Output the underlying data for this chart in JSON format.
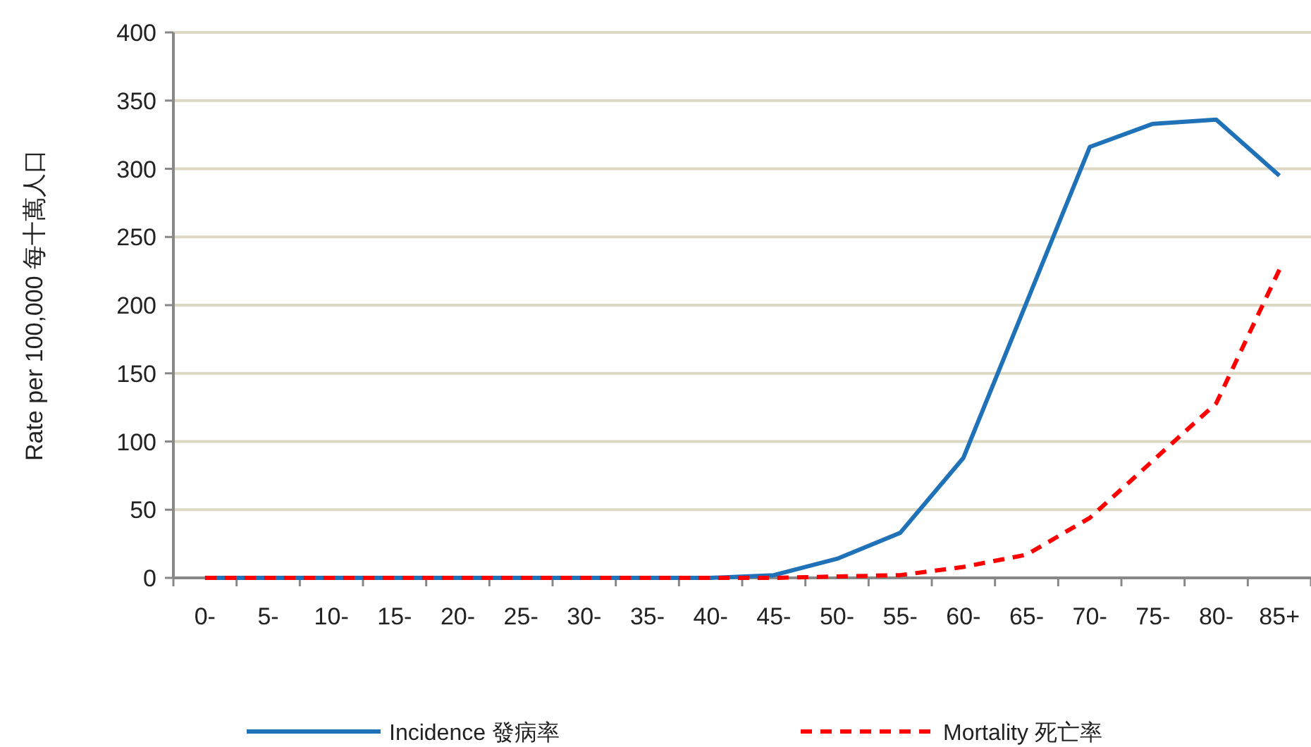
{
  "chart_data": {
    "type": "line",
    "ylabel": "Rate per 100,000  每十萬人口",
    "categories": [
      "0-",
      "5-",
      "10-",
      "15-",
      "20-",
      "25-",
      "30-",
      "35-",
      "40-",
      "45-",
      "50-",
      "55-",
      "60-",
      "65-",
      "70-",
      "75-",
      "80-",
      "85+"
    ],
    "ylim": [
      0,
      400
    ],
    "yticks": [
      0,
      50,
      100,
      150,
      200,
      250,
      300,
      350,
      400
    ],
    "grid": "y",
    "legend": "bottom",
    "series": [
      {
        "name": "Incidence 發病率",
        "color": "#1f72b8",
        "line_style": "solid",
        "values": [
          0,
          0,
          0,
          0,
          0,
          0,
          0,
          0,
          0,
          2,
          14,
          33,
          88,
          202,
          316,
          333,
          336,
          295
        ]
      },
      {
        "name": "Mortality 死亡率",
        "color": "#ff0000",
        "line_style": "dashed",
        "values": [
          0,
          0,
          0,
          0,
          0,
          0,
          0,
          0,
          0,
          0,
          1,
          2,
          8,
          17,
          44,
          86,
          128,
          226
        ]
      }
    ]
  }
}
